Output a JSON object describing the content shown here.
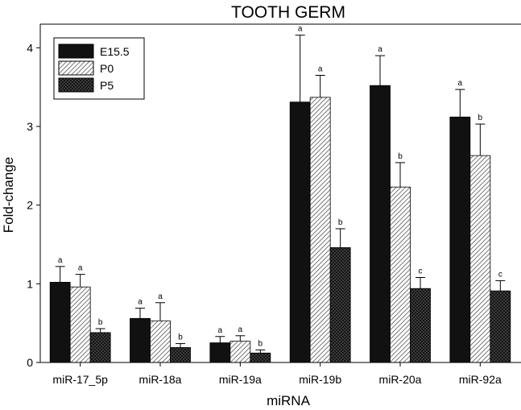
{
  "chart_data": {
    "type": "bar",
    "title": "TOOTH GERM",
    "xlabel": "miRNA",
    "ylabel": "Fold-change",
    "ylim": [
      0,
      4.3
    ],
    "yticks": [
      0,
      1,
      2,
      3,
      4
    ],
    "grid": false,
    "legend_position": "top-left",
    "categories": [
      "miR-17_5p",
      "miR-18a",
      "miR-19a",
      "miR-19b",
      "miR-20a",
      "miR-92a"
    ],
    "series": [
      {
        "name": "E15.5",
        "pattern": "solid",
        "color": "#111111",
        "values": [
          1.02,
          0.56,
          0.25,
          3.31,
          3.52,
          3.12
        ],
        "error": [
          0.2,
          0.13,
          0.08,
          0.85,
          0.38,
          0.35
        ],
        "significance": [
          "a",
          "a",
          "a",
          "a",
          "a",
          "a"
        ]
      },
      {
        "name": "P0",
        "pattern": "diagonal-hatch",
        "color": "#555555",
        "values": [
          0.96,
          0.53,
          0.27,
          3.37,
          2.23,
          2.63
        ],
        "error": [
          0.16,
          0.23,
          0.07,
          0.28,
          0.31,
          0.4
        ],
        "significance": [
          "a",
          "a",
          "a",
          "a",
          "b",
          "b"
        ]
      },
      {
        "name": "P5",
        "pattern": "crosshatch",
        "color": "#3a3a3a",
        "values": [
          0.38,
          0.19,
          0.12,
          1.46,
          0.94,
          0.91
        ],
        "error": [
          0.05,
          0.05,
          0.04,
          0.24,
          0.14,
          0.13
        ],
        "significance": [
          "b",
          "b",
          "b",
          "b",
          "c",
          "c"
        ]
      }
    ]
  }
}
